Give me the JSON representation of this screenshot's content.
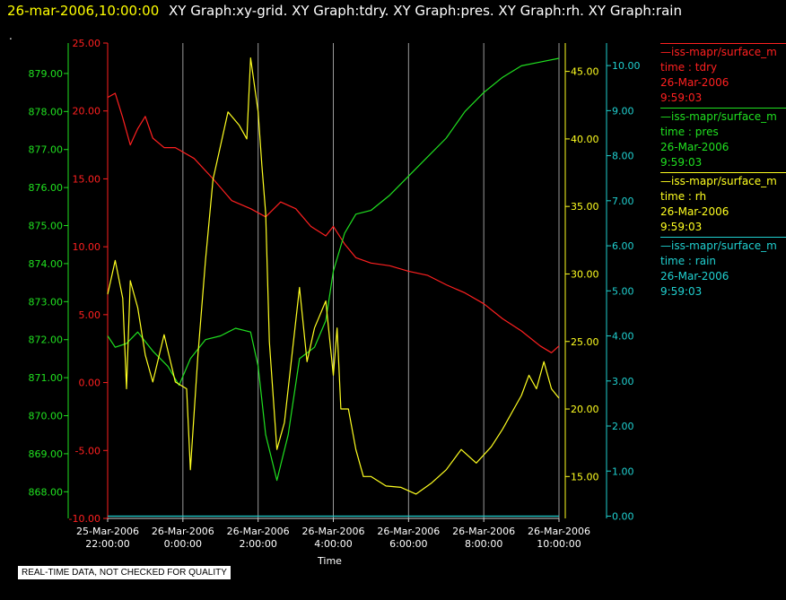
{
  "header": {
    "timestamp": "26-mar-2006,10:00:00",
    "titles": "XY Graph:xy-grid.  XY Graph:tdry.  XY Graph:pres.  XY Graph:rh.  XY Graph:rain"
  },
  "dot": ".",
  "legend": [
    {
      "line1": "—iss-mapr/surface_m",
      "line2": "time : tdry",
      "line3": "26-Mar-2006",
      "line4": "9:59:03",
      "color": "#ff2020"
    },
    {
      "line1": "—iss-mapr/surface_m",
      "line2": "time : pres",
      "line3": "26-Mar-2006",
      "line4": "9:59:03",
      "color": "#20e020"
    },
    {
      "line1": "—iss-mapr/surface_m",
      "line2": "time : rh",
      "line3": "26-Mar-2006",
      "line4": "9:59:03",
      "color": "#ffff20"
    },
    {
      "line1": "—iss-mapr/surface_m",
      "line2": "time : rain",
      "line3": "26-Mar-2006",
      "line4": "9:59:03",
      "color": "#20d0d0"
    }
  ],
  "warning": "REAL-TIME DATA, NOT CHECKED FOR QUALITY",
  "chart_data": {
    "type": "line",
    "xlabel": "Time",
    "x_ticks": [
      {
        "d": "25-Mar-2006",
        "t": "22:00:00",
        "h": -2
      },
      {
        "d": "26-Mar-2006",
        "t": "0:00:00",
        "h": 0
      },
      {
        "d": "26-Mar-2006",
        "t": "2:00:00",
        "h": 2
      },
      {
        "d": "26-Mar-2006",
        "t": "4:00:00",
        "h": 4
      },
      {
        "d": "26-Mar-2006",
        "t": "6:00:00",
        "h": 6
      },
      {
        "d": "26-Mar-2006",
        "t": "8:00:00",
        "h": 8
      },
      {
        "d": "26-Mar-2006",
        "t": "10:00:00",
        "h": 10
      }
    ],
    "x_range_hours": [
      -2,
      10
    ],
    "grid": "vertical",
    "axes": {
      "pres": {
        "range": [
          867.3,
          879.8
        ],
        "ticks": [
          "868.00",
          "869.00",
          "870.00",
          "871.00",
          "872.00",
          "873.00",
          "874.00",
          "875.00",
          "876.00",
          "877.00",
          "878.00",
          "879.00"
        ],
        "color": "#20e020"
      },
      "tdry": {
        "range": [
          -10,
          25
        ],
        "ticks": [
          "-10.00",
          "-5.00",
          "0.00",
          "5.00",
          "10.00",
          "15.00",
          "20.00",
          "25.00"
        ],
        "color": "#ff2020"
      },
      "rh": {
        "range": [
          11.9,
          47.1
        ],
        "ticks": [
          "15.00",
          "20.00",
          "25.00",
          "30.00",
          "35.00",
          "40.00",
          "45.00"
        ],
        "color": "#ffff20"
      },
      "rain": {
        "range": [
          -0.05,
          10.5
        ],
        "ticks": [
          "0.00",
          "1.00",
          "2.00",
          "3.00",
          "4.00",
          "5.00",
          "6.00",
          "7.00",
          "8.00",
          "9.00",
          "10.00"
        ],
        "color": "#20d0d0"
      }
    },
    "series": [
      {
        "name": "time : tdry",
        "axis": "tdry",
        "color": "#ff2020",
        "points": [
          [
            -2,
            21
          ],
          [
            -1.8,
            21.3
          ],
          [
            -1.6,
            19.5
          ],
          [
            -1.4,
            17.5
          ],
          [
            -1.2,
            18.7
          ],
          [
            -1.0,
            19.6
          ],
          [
            -0.8,
            18
          ],
          [
            -0.5,
            17.3
          ],
          [
            -0.2,
            17.3
          ],
          [
            0.3,
            16.5
          ],
          [
            0.8,
            15
          ],
          [
            1.3,
            13.4
          ],
          [
            1.8,
            12.8
          ],
          [
            2.2,
            12.2
          ],
          [
            2.6,
            13.3
          ],
          [
            3.0,
            12.8
          ],
          [
            3.4,
            11.5
          ],
          [
            3.8,
            10.8
          ],
          [
            4.0,
            11.5
          ],
          [
            4.3,
            10.2
          ],
          [
            4.6,
            9.2
          ],
          [
            5.0,
            8.8
          ],
          [
            5.5,
            8.6
          ],
          [
            6.0,
            8.2
          ],
          [
            6.5,
            7.9
          ],
          [
            7.0,
            7.2
          ],
          [
            7.5,
            6.6
          ],
          [
            8.0,
            5.8
          ],
          [
            8.5,
            4.7
          ],
          [
            9.0,
            3.8
          ],
          [
            9.5,
            2.7
          ],
          [
            9.8,
            2.2
          ],
          [
            10,
            2.7
          ]
        ]
      },
      {
        "name": "time : pres",
        "axis": "pres",
        "color": "#20e020",
        "points": [
          [
            -2,
            872.1
          ],
          [
            -1.8,
            871.8
          ],
          [
            -1.5,
            871.9
          ],
          [
            -1.2,
            872.2
          ],
          [
            -0.8,
            871.7
          ],
          [
            -0.4,
            871.3
          ],
          [
            -0.1,
            870.8
          ],
          [
            0.2,
            871.5
          ],
          [
            0.6,
            872
          ],
          [
            1.0,
            872.1
          ],
          [
            1.4,
            872.3
          ],
          [
            1.8,
            872.2
          ],
          [
            2.0,
            871.3
          ],
          [
            2.2,
            869.5
          ],
          [
            2.5,
            868.3
          ],
          [
            2.8,
            869.5
          ],
          [
            3.1,
            871.5
          ],
          [
            3.5,
            871.8
          ],
          [
            3.8,
            872.5
          ],
          [
            4.0,
            873.8
          ],
          [
            4.3,
            874.8
          ],
          [
            4.6,
            875.3
          ],
          [
            5.0,
            875.4
          ],
          [
            5.5,
            875.8
          ],
          [
            6.0,
            876.3
          ],
          [
            6.5,
            876.8
          ],
          [
            7.0,
            877.3
          ],
          [
            7.5,
            878
          ],
          [
            8.0,
            878.5
          ],
          [
            8.5,
            878.9
          ],
          [
            9.0,
            879.2
          ],
          [
            9.5,
            879.3
          ],
          [
            10,
            879.4
          ]
        ]
      },
      {
        "name": "time : rh",
        "axis": "rh",
        "color": "#ffff20",
        "points": [
          [
            -2,
            28.5
          ],
          [
            -1.8,
            31
          ],
          [
            -1.6,
            28.2
          ],
          [
            -1.5,
            21.5
          ],
          [
            -1.4,
            29.5
          ],
          [
            -1.2,
            27.5
          ],
          [
            -1.0,
            24
          ],
          [
            -0.8,
            22
          ],
          [
            -0.5,
            25.5
          ],
          [
            -0.2,
            22
          ],
          [
            0.1,
            21.5
          ],
          [
            0.2,
            15.5
          ],
          [
            0.4,
            24
          ],
          [
            0.6,
            31
          ],
          [
            0.8,
            37
          ],
          [
            1.0,
            39.5
          ],
          [
            1.2,
            42
          ],
          [
            1.5,
            41
          ],
          [
            1.7,
            40
          ],
          [
            1.8,
            46
          ],
          [
            2.0,
            42
          ],
          [
            2.1,
            38
          ],
          [
            2.2,
            34.5
          ],
          [
            2.3,
            25
          ],
          [
            2.5,
            17
          ],
          [
            2.7,
            19
          ],
          [
            2.9,
            24
          ],
          [
            3.1,
            29
          ],
          [
            3.3,
            23.5
          ],
          [
            3.5,
            26
          ],
          [
            3.8,
            28
          ],
          [
            4.0,
            22.5
          ],
          [
            4.1,
            26
          ],
          [
            4.2,
            20
          ],
          [
            4.4,
            20
          ],
          [
            4.6,
            17
          ],
          [
            4.8,
            15
          ],
          [
            5.0,
            15
          ],
          [
            5.4,
            14.3
          ],
          [
            5.8,
            14.2
          ],
          [
            6.2,
            13.7
          ],
          [
            6.6,
            14.5
          ],
          [
            7.0,
            15.5
          ],
          [
            7.4,
            17
          ],
          [
            7.8,
            16
          ],
          [
            8.2,
            17.2
          ],
          [
            8.5,
            18.5
          ],
          [
            8.8,
            20
          ],
          [
            9.0,
            21
          ],
          [
            9.2,
            22.5
          ],
          [
            9.4,
            21.5
          ],
          [
            9.6,
            23.5
          ],
          [
            9.8,
            21.5
          ],
          [
            10,
            20.8
          ]
        ]
      },
      {
        "name": "time : rain",
        "axis": "rain",
        "color": "#20d0d0",
        "points": [
          [
            -2,
            0.0
          ],
          [
            10,
            0.0
          ]
        ]
      }
    ]
  }
}
